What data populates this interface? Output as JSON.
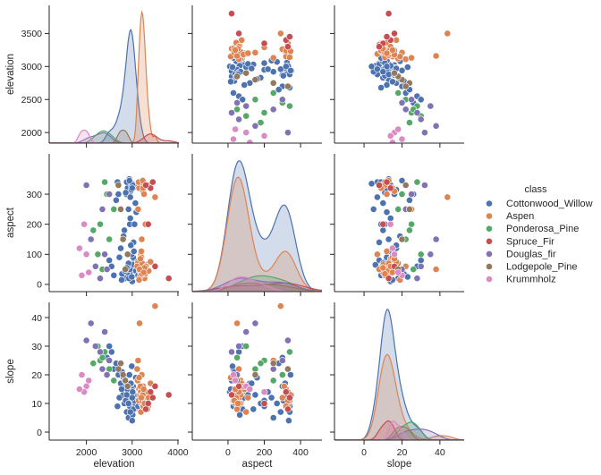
{
  "chart_data": {
    "type": "scatter",
    "kind": "pairplot",
    "hue_title": "class",
    "variables": [
      "elevation",
      "aspect",
      "slope"
    ],
    "diagonal": "kde",
    "grid": false,
    "legend_placement": "right",
    "ranges": {
      "elevation": [
        1187,
        4020
      ],
      "aspect": [
        -197,
        518
      ],
      "slope": [
        -15.6,
        52.8
      ]
    },
    "row_ranges": {
      "elevation": [
        1840,
        3925
      ],
      "aspect": [
        -24,
        434
      ],
      "slope": [
        -2.8,
        45.3
      ]
    },
    "ticks": {
      "elevation": [
        2000,
        3000,
        4000
      ],
      "elevation_y": [
        2000,
        2500,
        3000,
        3500
      ],
      "aspect": [
        0,
        200,
        400
      ],
      "aspect_y": [
        0,
        100,
        200,
        300
      ],
      "slope": [
        0,
        20,
        40
      ],
      "slope_y": [
        0,
        10,
        20,
        30,
        40
      ]
    },
    "classes": [
      {
        "name": "Cottonwood_Willow",
        "color": "#4c72b0",
        "points": [
          [
            2950,
            40,
            12
          ],
          [
            3000,
            60,
            15
          ],
          [
            2900,
            320,
            10
          ],
          [
            3050,
            80,
            8
          ],
          [
            2850,
            20,
            18
          ],
          [
            2980,
            330,
            14
          ],
          [
            3100,
            50,
            11
          ],
          [
            2700,
            300,
            20
          ],
          [
            2800,
            150,
            13
          ],
          [
            2950,
            200,
            9
          ],
          [
            3020,
            90,
            16
          ],
          [
            2880,
            340,
            7
          ],
          [
            2600,
            30,
            22
          ],
          [
            3150,
            70,
            12
          ],
          [
            2920,
            250,
            5
          ],
          [
            3000,
            10,
            14
          ],
          [
            2750,
            120,
            17
          ],
          [
            2970,
            310,
            11
          ],
          [
            3080,
            45,
            19
          ],
          [
            2830,
            180,
            10
          ],
          [
            2940,
            350,
            13
          ],
          [
            3010,
            65,
            6
          ],
          [
            2650,
            280,
            24
          ],
          [
            2990,
            100,
            15
          ],
          [
            2900,
            55,
            12
          ],
          [
            3060,
            325,
            9
          ],
          [
            2780,
            35,
            21
          ],
          [
            2960,
            220,
            14
          ],
          [
            3120,
            75,
            11
          ],
          [
            2870,
            300,
            16
          ],
          [
            2550,
            60,
            28
          ],
          [
            3030,
            140,
            8
          ],
          [
            2930,
            20,
            13
          ],
          [
            2980,
            315,
            17
          ],
          [
            2720,
            90,
            12
          ],
          [
            3070,
            270,
            10
          ],
          [
            2890,
            40,
            15
          ],
          [
            3000,
            335,
            4
          ],
          [
            2810,
            160,
            19
          ],
          [
            2950,
            50,
            12
          ],
          [
            3200,
            85,
            14
          ],
          [
            2860,
            305,
            11
          ],
          [
            2990,
            25,
            23
          ],
          [
            2680,
            340,
            9
          ],
          [
            3040,
            110,
            13
          ],
          [
            2910,
            60,
            16
          ],
          [
            2960,
            290,
            7
          ],
          [
            2840,
            45,
            18
          ],
          [
            3090,
            240,
            12
          ],
          [
            2500,
            80,
            30
          ],
          [
            3010,
            330,
            14
          ],
          [
            2920,
            70,
            10
          ],
          [
            2770,
            15,
            15
          ],
          [
            3050,
            200,
            11
          ],
          [
            2940,
            345,
            20
          ],
          [
            2880,
            55,
            13
          ],
          [
            2450,
            300,
            26
          ],
          [
            3130,
            30,
            9
          ],
          [
            2970,
            130,
            17
          ],
          [
            3000,
            320,
            12
          ]
        ]
      },
      {
        "name": "Aspen",
        "color": "#dd8452",
        "points": [
          [
            3200,
            40,
            10
          ],
          [
            3250,
            60,
            12
          ],
          [
            3150,
            320,
            15
          ],
          [
            3300,
            50,
            8
          ],
          [
            3180,
            80,
            14
          ],
          [
            3220,
            30,
            11
          ],
          [
            3350,
            330,
            9
          ],
          [
            3120,
            70,
            18
          ],
          [
            3270,
            20,
            13
          ],
          [
            3190,
            100,
            7
          ],
          [
            3240,
            310,
            16
          ],
          [
            3160,
            45,
            12
          ],
          [
            3310,
            65,
            10
          ],
          [
            3210,
            150,
            20
          ],
          [
            3280,
            35,
            14
          ],
          [
            3140,
            340,
            11
          ],
          [
            3230,
            55,
            9
          ],
          [
            3400,
            75,
            17
          ],
          [
            3170,
            25,
            13
          ],
          [
            3260,
            300,
            12
          ],
          [
            3200,
            90,
            15
          ],
          [
            3330,
            50,
            8
          ],
          [
            3110,
            60,
            22
          ],
          [
            3250,
            330,
            11
          ],
          [
            3190,
            40,
            14
          ],
          [
            3290,
            200,
            10
          ],
          [
            3220,
            70,
            13
          ],
          [
            3150,
            15,
            19
          ],
          [
            3360,
            45,
            12
          ],
          [
            3240,
            320,
            9
          ],
          [
            3180,
            85,
            16
          ],
          [
            3210,
            35,
            11
          ],
          [
            3300,
            60,
            14
          ],
          [
            3130,
            250,
            25
          ],
          [
            3270,
            55,
            10
          ],
          [
            3230,
            345,
            13
          ],
          [
            3500,
            290,
            44
          ],
          [
            3160,
            50,
            38
          ],
          [
            3200,
            110,
            12
          ],
          [
            3250,
            40,
            15
          ]
        ]
      },
      {
        "name": "Ponderosa_Pine",
        "color": "#55a868",
        "points": [
          [
            2400,
            340,
            28
          ],
          [
            2300,
            200,
            25
          ],
          [
            2500,
            150,
            22
          ],
          [
            2250,
            100,
            30
          ],
          [
            2450,
            300,
            20
          ],
          [
            2350,
            50,
            26
          ],
          [
            2600,
            250,
            18
          ],
          [
            2150,
            180,
            24
          ]
        ]
      },
      {
        "name": "Spruce_Fir",
        "color": "#c44e52",
        "points": [
          [
            3400,
            320,
            14
          ],
          [
            3450,
            340,
            12
          ],
          [
            3350,
            200,
            10
          ],
          [
            3500,
            60,
            16
          ],
          [
            3800,
            20,
            13
          ],
          [
            3300,
            330,
            8
          ]
        ]
      },
      {
        "name": "Douglas_fir",
        "color": "#8172b3",
        "points": [
          [
            2400,
            100,
            35
          ],
          [
            2200,
            60,
            30
          ],
          [
            2000,
            330,
            32
          ],
          [
            2300,
            20,
            28
          ],
          [
            2500,
            300,
            25
          ],
          [
            2100,
            150,
            38
          ],
          [
            2350,
            250,
            22
          ],
          [
            2450,
            50,
            20
          ]
        ]
      },
      {
        "name": "Lodgepole_Pine",
        "color": "#937860",
        "points": [
          [
            2800,
            150,
            20
          ],
          [
            2750,
            250,
            24
          ],
          [
            2850,
            50,
            18
          ],
          [
            2700,
            330,
            22
          ],
          [
            2900,
            100,
            16
          ]
        ]
      },
      {
        "name": "Krummholz",
        "color": "#da8bc3",
        "points": [
          [
            1900,
            30,
            20
          ],
          [
            2000,
            100,
            16
          ],
          [
            1950,
            200,
            14
          ],
          [
            2050,
            40,
            18
          ],
          [
            1850,
            120,
            15
          ]
        ]
      }
    ]
  }
}
